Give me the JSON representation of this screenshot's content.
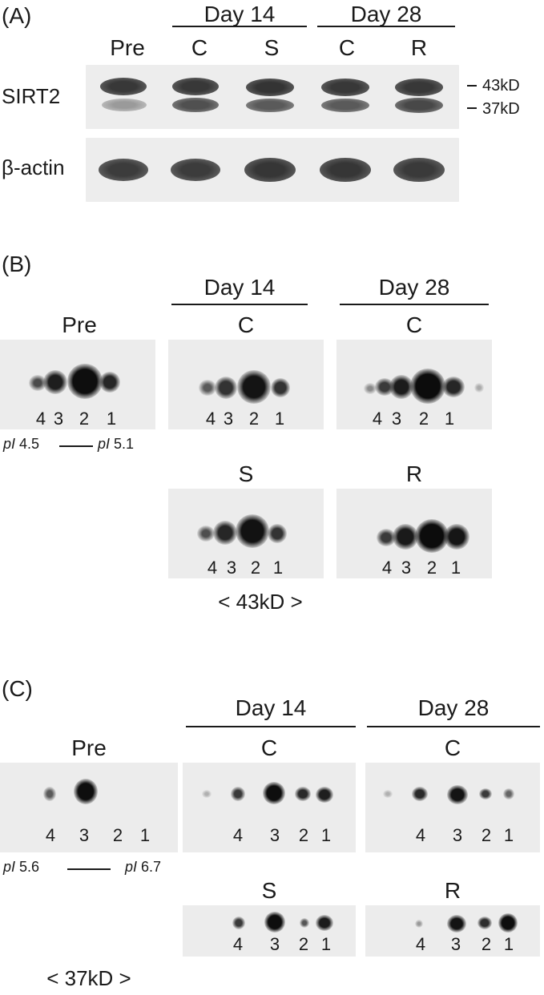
{
  "panelA": {
    "label": "(A)",
    "groups": [
      {
        "text": "Day 14"
      },
      {
        "text": "Day 28"
      }
    ],
    "lanes": [
      {
        "text": "Pre"
      },
      {
        "text": "C"
      },
      {
        "text": "S"
      },
      {
        "text": "C"
      },
      {
        "text": "R"
      }
    ],
    "rows": [
      {
        "text": "SIRT2"
      },
      {
        "text": "β-actin"
      }
    ],
    "markers": [
      {
        "text": "43kD"
      },
      {
        "text": "37kD"
      }
    ]
  },
  "panelB": {
    "label": "(B)",
    "groups": [
      {
        "text": "Day 14"
      },
      {
        "text": "Day 28"
      }
    ],
    "gels": [
      {
        "label": "Pre",
        "spots": [
          "4",
          "3",
          "2",
          "1"
        ]
      },
      {
        "label": "C",
        "spots": [
          "4",
          "3",
          "2",
          "1"
        ]
      },
      {
        "label": "C",
        "spots": [
          "4",
          "3",
          "2",
          "1"
        ]
      },
      {
        "label": "S",
        "spots": [
          "4",
          "3",
          "2",
          "1"
        ]
      },
      {
        "label": "R",
        "spots": [
          "4",
          "3",
          "2",
          "1"
        ]
      }
    ],
    "pi_left": "4.5",
    "pi_right": "5.1",
    "pi_prefix": "pI",
    "mass": "< 43kD >"
  },
  "panelC": {
    "label": "(C)",
    "groups": [
      {
        "text": "Day 14"
      },
      {
        "text": "Day 28"
      }
    ],
    "gels": [
      {
        "label": "Pre",
        "spots": [
          "4",
          "3",
          "2",
          "1"
        ]
      },
      {
        "label": "C",
        "spots": [
          "4",
          "3",
          "2",
          "1"
        ]
      },
      {
        "label": "C",
        "spots": [
          "4",
          "3",
          "2",
          "1"
        ]
      },
      {
        "label": "S",
        "spots": [
          "4",
          "3",
          "2",
          "1"
        ]
      },
      {
        "label": "R",
        "spots": [
          "4",
          "3",
          "2",
          "1"
        ]
      }
    ],
    "pi_left": "5.6",
    "pi_right": "6.7",
    "pi_prefix": "pI",
    "mass": "< 37kD >"
  }
}
